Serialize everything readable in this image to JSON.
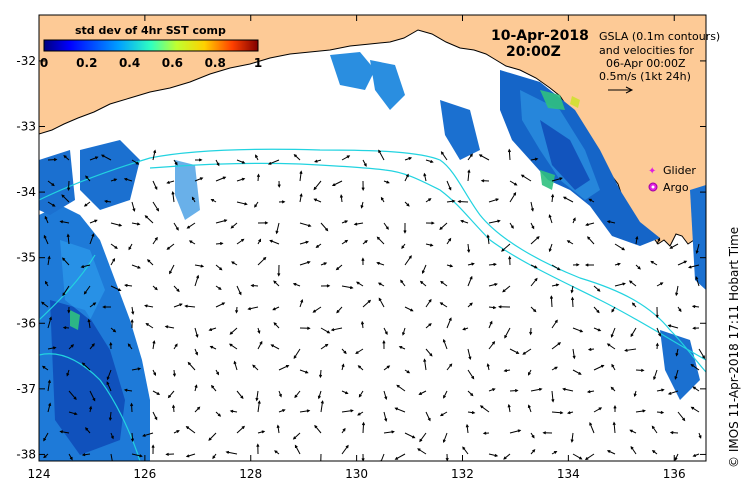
{
  "map": {
    "date": "10-Apr-2018",
    "time": "20:00Z",
    "lon_ticks": [
      "124",
      "126",
      "128",
      "130",
      "132",
      "134",
      "136"
    ],
    "lat_ticks": [
      "-32",
      "-33",
      "-34",
      "-35",
      "-36",
      "-37",
      "-38"
    ],
    "lon_range": [
      124,
      136.6
    ],
    "lat_range": [
      -38.1,
      -31.3
    ]
  },
  "colorbar": {
    "title": "std dev of 4hr SST comp",
    "ticks": [
      "0",
      "0.2",
      "0.4",
      "0.6",
      "0.8",
      "1"
    ]
  },
  "gsla_note": {
    "line1": "GSLA (0.1m contours)",
    "line2": "and velocities for",
    "line3": "06-Apr 00:00Z",
    "line4": "0.5m/s (1kt 24h)"
  },
  "legend": {
    "glider": "Glider",
    "argo": "Argo"
  },
  "credit": "© IMOS 11-Apr-2018 17:11 Hobart Time",
  "colors": {
    "land": "#fdca96",
    "contour": "#22d3e0",
    "ocean": "#ffffff",
    "glider": "#e020e0",
    "argo": "#e020e0"
  }
}
